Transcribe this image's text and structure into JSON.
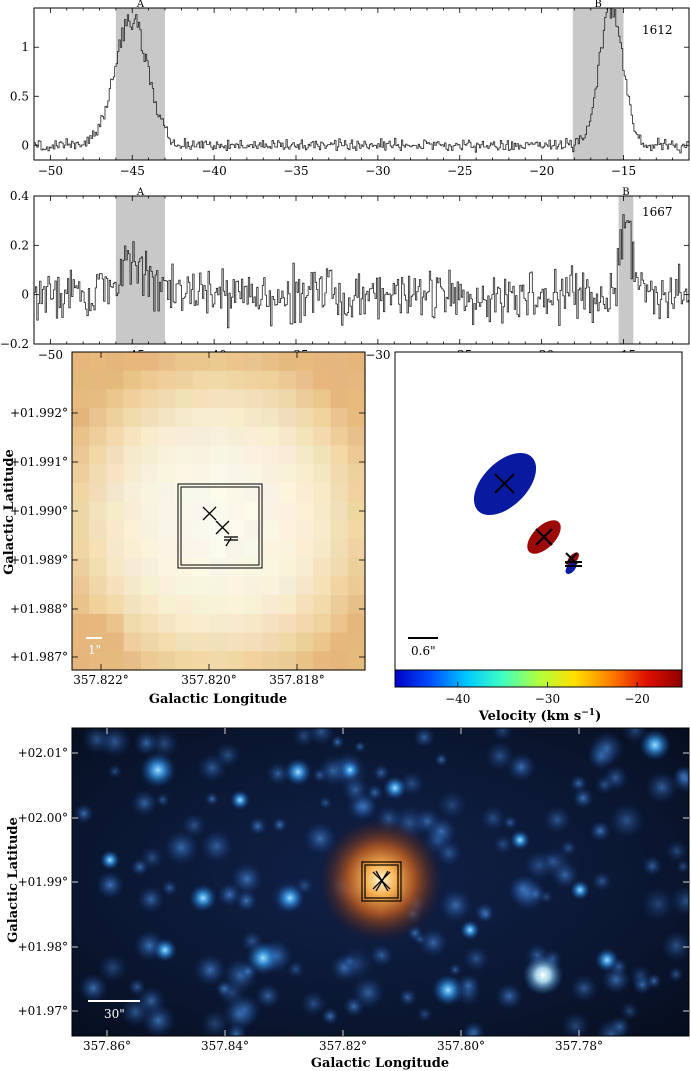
{
  "colors": {
    "band": "#c8c8c8",
    "spectrum": "#222222",
    "maser_blue": "#0a1aa0",
    "maser_red": "#9c0a0a",
    "colorbar_stops": [
      "#0000c8",
      "#0050ff",
      "#00c8ff",
      "#40ffc0",
      "#b0ff40",
      "#ffe000",
      "#ff8000",
      "#e01000",
      "#900000"
    ],
    "crop_pixel_colors": [
      "#e8bb80",
      "#f3d8a6",
      "#fbf0d4",
      "#fefcf0"
    ]
  },
  "chart_data": [
    {
      "type": "line",
      "panel": "spectrum-1612",
      "annotation": "1612",
      "xlim": [
        -51,
        -11
      ],
      "ylim": [
        -0.15,
        1.4
      ],
      "xticks": [
        -50,
        -45,
        -40,
        -35,
        -30,
        -25,
        -20,
        -15
      ],
      "yticks": [
        0,
        0.5,
        1
      ],
      "shaded_ranges": [
        {
          "label": "A",
          "x": [
            -46,
            -43
          ]
        },
        {
          "label": "B",
          "x": [
            -18.1,
            -15
          ]
        }
      ],
      "features": [
        {
          "center": -45.1,
          "peak": 1.3,
          "width": 1.0
        },
        {
          "center": -15.8,
          "peak": 1.42,
          "width": 0.7
        }
      ],
      "noise_rms": 0.04
    },
    {
      "type": "line",
      "panel": "spectrum-1667",
      "annotation": "1667",
      "xlim": [
        -51,
        -11
      ],
      "ylim": [
        -0.2,
        0.4
      ],
      "xticks": [
        -50,
        -45,
        -40,
        -35,
        -30,
        -25,
        -20,
        -15
      ],
      "yticks": [
        -0.2,
        0,
        0.2,
        0.4
      ],
      "shaded_ranges": [
        {
          "label": "A",
          "x": [
            -46,
            -43
          ]
        },
        {
          "label": "B",
          "x": [
            -15.3,
            -14.4
          ]
        }
      ],
      "features": [
        {
          "center": -45,
          "peak": 0.12,
          "width": 0.8
        },
        {
          "center": -14.9,
          "peak": 0.31,
          "width": 0.35
        }
      ],
      "noise_rms": 0.07
    },
    {
      "type": "heatmap",
      "panel": "zoom-map",
      "xlabel": "Galactic Longitude",
      "ylabel": "Galactic Latitude",
      "xticks": [
        "357.822°",
        "357.820°",
        "357.818°"
      ],
      "yticks": [
        "+01.992°",
        "+01.991°",
        "+01.990°",
        "+01.989°",
        "+01.988°",
        "+01.987°"
      ],
      "scale_bar": "1\""
    },
    {
      "type": "scatter",
      "panel": "maser-spots",
      "scale_bar": "0.6\"",
      "colorbar": {
        "label": "Velocity (km s",
        "label_sup": "−1",
        "label_end": ")",
        "ticks": [
          "−40",
          "−30",
          "−20"
        ],
        "range": [
          -47,
          -15
        ]
      },
      "spots": [
        {
          "velocity": -45,
          "color": "blue"
        },
        {
          "velocity": -15.8,
          "color": "red"
        },
        {
          "velocity": -15.8,
          "color": "red"
        },
        {
          "velocity": -45,
          "color": "blue"
        }
      ]
    },
    {
      "type": "heatmap",
      "panel": "infrared-image",
      "xlabel": "Galactic Longitude",
      "ylabel": "Galactic Latitude",
      "xticks": [
        "357.86°",
        "357.84°",
        "357.82°",
        "357.80°",
        "357.78°"
      ],
      "yticks": [
        "+02.01°",
        "+02.00°",
        "+01.99°",
        "+01.98°",
        "+01.97°"
      ],
      "scale_bar": "30\""
    }
  ]
}
